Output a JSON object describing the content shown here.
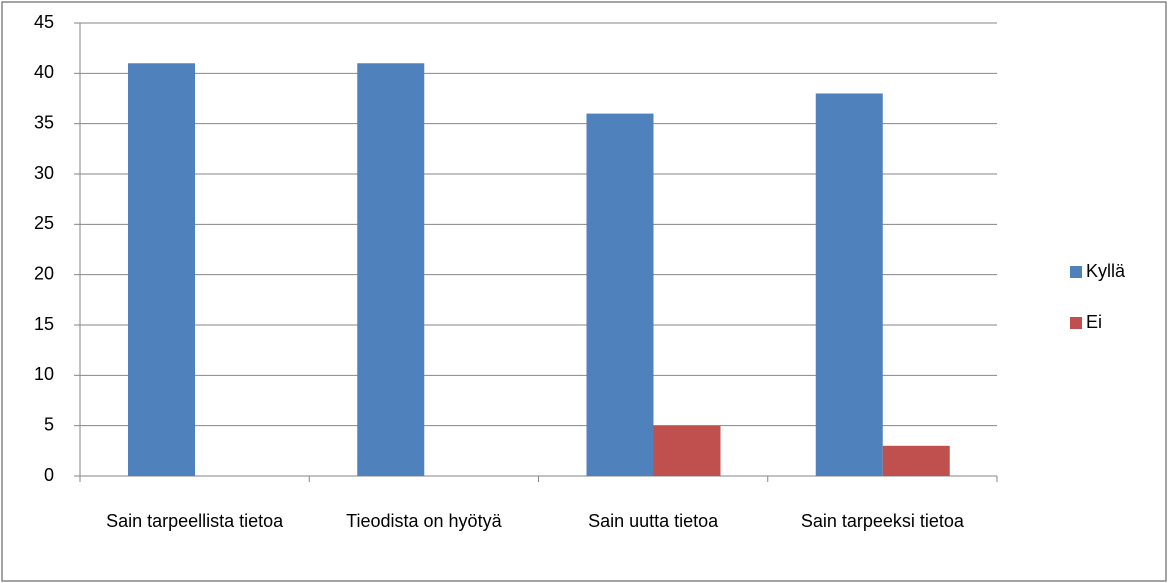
{
  "chart_data": {
    "type": "bar",
    "categories": [
      "Sain tarpeellista tietoa",
      "Tieodista on hyötyä",
      "Sain uutta tietoa",
      "Sain tarpeeksi tietoa"
    ],
    "series": [
      {
        "name": "Kyllä",
        "color": "#4f81bd",
        "values": [
          41,
          41,
          36,
          38
        ]
      },
      {
        "name": "Ei",
        "color": "#c0504d",
        "values": [
          0,
          0,
          5,
          3
        ]
      }
    ],
    "ylim": [
      0,
      45
    ],
    "yticks": [
      0,
      5,
      10,
      15,
      20,
      25,
      30,
      35,
      40,
      45
    ],
    "grid": true,
    "legend": "right"
  }
}
